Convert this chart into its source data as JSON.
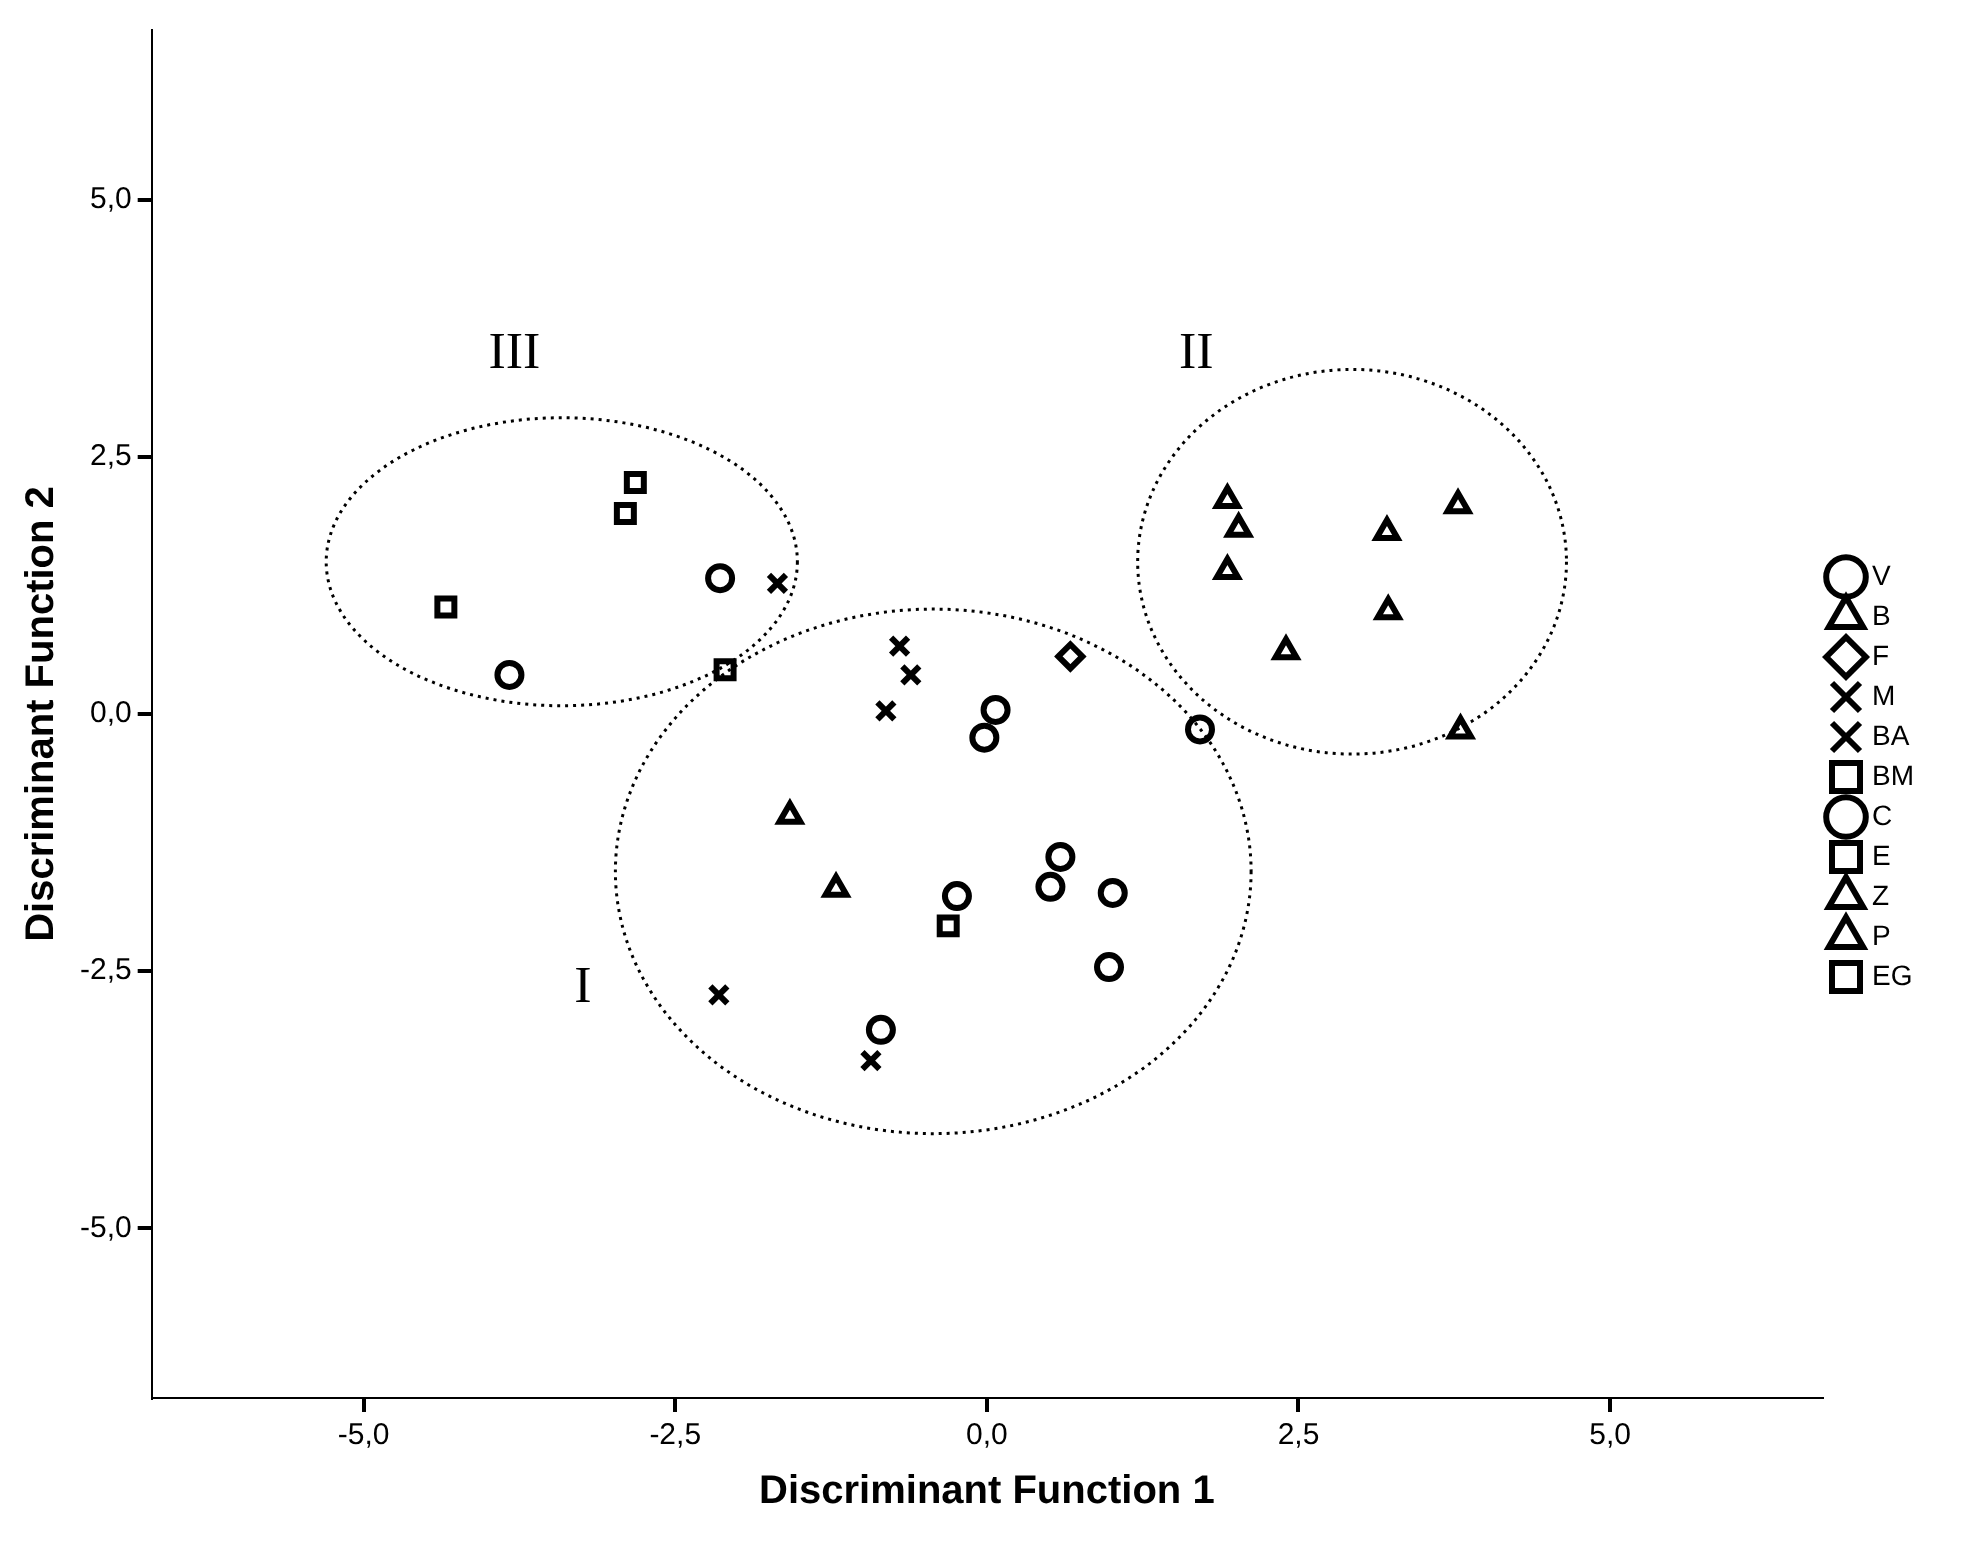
{
  "chart_data": {
    "type": "scatter",
    "xlabel": "Discriminant Function 1",
    "ylabel": "Discriminant Function 2",
    "xlim": [
      -6.7,
      6.7
    ],
    "ylim": [
      -6.65,
      6.65
    ],
    "xticks": [
      {
        "value": -5,
        "label": "-5,0"
      },
      {
        "value": -2.5,
        "label": "-2,5"
      },
      {
        "value": 0,
        "label": "0,0"
      },
      {
        "value": 2.5,
        "label": "2,5"
      },
      {
        "value": 5,
        "label": "5,0"
      }
    ],
    "yticks": [
      {
        "value": -5,
        "label": "-5,0"
      },
      {
        "value": -2.5,
        "label": "-2,5"
      },
      {
        "value": 0,
        "label": "0,0"
      },
      {
        "value": 2.5,
        "label": "2,5"
      },
      {
        "value": 5,
        "label": "5,0"
      }
    ],
    "grid": false,
    "legend": "right",
    "series": [
      {
        "name": "V",
        "color": "#000000",
        "marker": "circle",
        "x": [
          0.07,
          -0.02,
          1.71,
          0.59,
          0.51,
          1.01,
          0.98,
          -0.85,
          -0.24
        ],
        "values": [
          0.04,
          -0.23,
          -0.15,
          -1.39,
          -1.68,
          -1.74,
          -2.46,
          -3.07,
          -1.77
        ]
      },
      {
        "name": "B",
        "color": "#000000",
        "marker": "triangle",
        "x": [
          1.93,
          2.02,
          3.78
        ],
        "values": [
          2.08,
          1.8,
          2.03
        ]
      },
      {
        "name": "F",
        "color": "#000000",
        "marker": "diamond",
        "x": [
          0.67
        ],
        "values": [
          0.56
        ]
      },
      {
        "name": "M",
        "color": "#000000",
        "marker": "cross",
        "x": [
          -2.15,
          -0.93
        ],
        "values": [
          -2.73,
          -3.37
        ]
      },
      {
        "name": "BA",
        "color": "#000000",
        "marker": "cross",
        "x": [
          -1.68,
          -0.7,
          -0.61,
          -0.81
        ],
        "values": [
          1.27,
          0.66,
          0.38,
          0.03
        ]
      },
      {
        "name": "BM",
        "color": "#000000",
        "marker": "square",
        "x": [
          -4.34,
          -2.1
        ],
        "values": [
          1.04,
          0.43
        ]
      },
      {
        "name": "C",
        "color": "#000000",
        "marker": "circle",
        "x": [
          -2.14,
          -3.83
        ],
        "values": [
          1.32,
          0.38
        ]
      },
      {
        "name": "E",
        "color": "#000000",
        "marker": "square",
        "x": [
          -0.31
        ],
        "values": [
          -2.06
        ]
      },
      {
        "name": "Z",
        "color": "#000000",
        "marker": "triangle",
        "x": [
          -1.58,
          -1.21
        ],
        "values": [
          -0.99,
          -1.7
        ]
      },
      {
        "name": "P",
        "color": "#000000",
        "marker": "triangle",
        "x": [
          3.21,
          1.93,
          3.22,
          2.4,
          3.8
        ],
        "values": [
          1.77,
          1.39,
          1.0,
          0.61,
          -0.16
        ]
      },
      {
        "name": "EG",
        "color": "#000000",
        "marker": "square",
        "x": [
          -2.82,
          -2.9
        ],
        "values": [
          2.25,
          1.95
        ]
      }
    ],
    "annotations": [
      "III",
      "II",
      "I"
    ]
  }
}
